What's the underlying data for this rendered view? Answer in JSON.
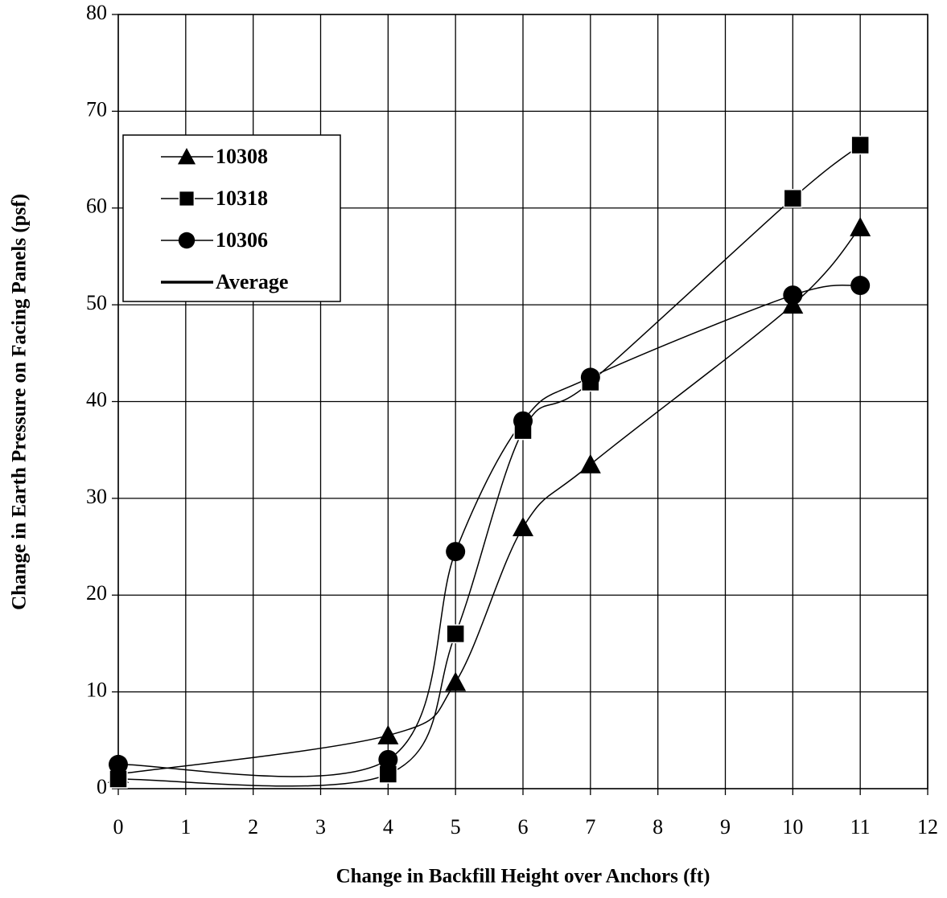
{
  "chart_data": {
    "type": "line",
    "x_label": "Change in Backfill Height over Anchors  (ft)",
    "y_label": "Change in Earth Pressure on Facing Panels (psf)",
    "x": [
      0,
      4,
      5,
      6,
      7,
      10,
      11
    ],
    "series": [
      {
        "name": "10308",
        "color": "#000000",
        "marker": "triangle",
        "values": [
          1.5,
          5.5,
          11,
          27,
          33.5,
          50,
          58
        ]
      },
      {
        "name": "10318",
        "color": "#000000",
        "marker": "square",
        "values": [
          1,
          1.5,
          16,
          37,
          42,
          61,
          66.5
        ]
      },
      {
        "name": "10306",
        "color": "#000000",
        "marker": "circle",
        "values": [
          2.5,
          3,
          24.5,
          38,
          42.5,
          51,
          52
        ]
      },
      {
        "name": "Average",
        "color": "#000000",
        "marker": "none",
        "values": [
          null,
          null,
          null,
          null,
          null,
          null,
          null
        ]
      }
    ],
    "xlim": [
      0,
      12
    ],
    "xticks": [
      0,
      1,
      2,
      3,
      4,
      5,
      6,
      7,
      8,
      9,
      10,
      11,
      12
    ],
    "ylim": [
      0,
      80
    ],
    "yticks": [
      0,
      10,
      20,
      30,
      40,
      50,
      60,
      70,
      80
    ],
    "grid": true,
    "legend": "upper left",
    "smooth": true
  }
}
